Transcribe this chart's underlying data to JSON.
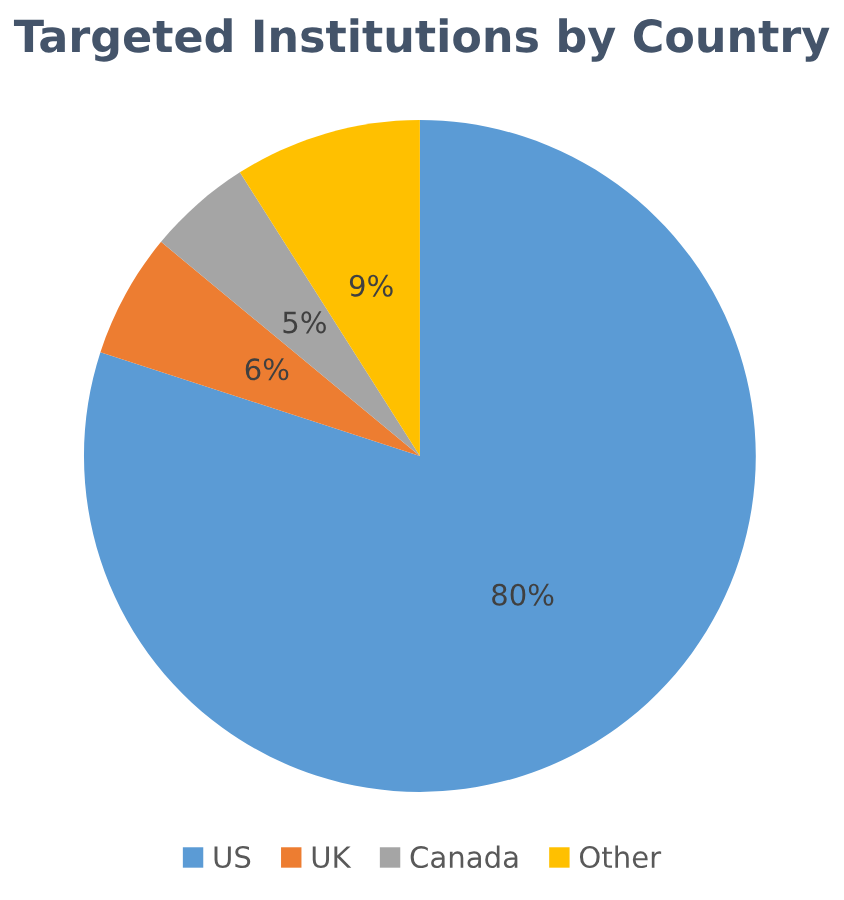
{
  "chart_data": {
    "type": "pie",
    "title": "Targeted Institutions by Country",
    "categories": [
      "US",
      "UK",
      "Canada",
      "Other"
    ],
    "values": [
      80,
      6,
      5,
      9
    ],
    "colors": [
      "#5b9bd5",
      "#ed7d31",
      "#a5a5a5",
      "#ffc000"
    ],
    "value_labels": [
      "80%",
      "6%",
      "5%",
      "9%"
    ],
    "legend": "bottom"
  }
}
